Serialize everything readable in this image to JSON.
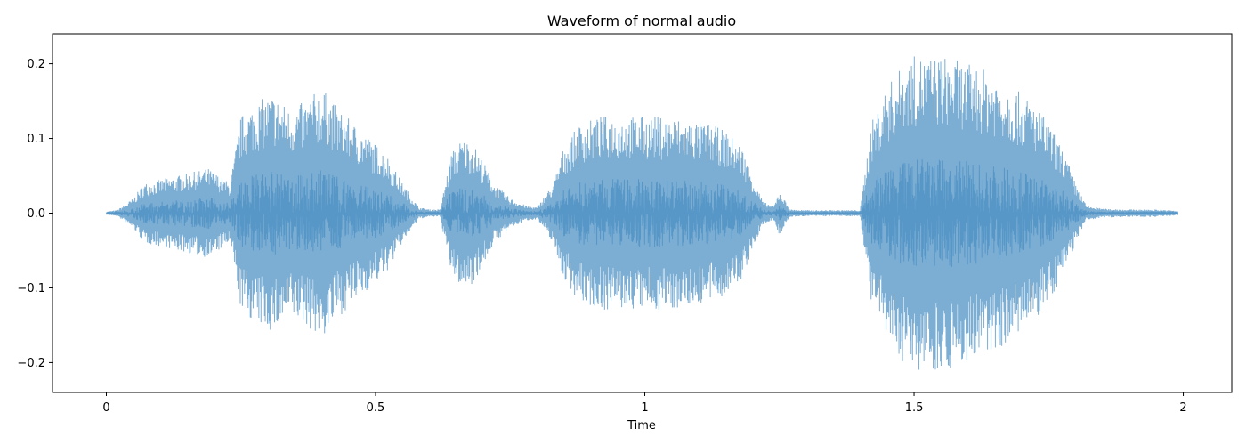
{
  "chart_data": {
    "type": "line",
    "title": "Waveform of normal audio",
    "xlabel": "Time",
    "ylabel": "",
    "xlim": [
      -0.1,
      2.09
    ],
    "ylim": [
      -0.24,
      0.24
    ],
    "xticks": [
      0,
      0.5,
      1,
      1.5,
      2
    ],
    "xtick_labels": [
      "0",
      "0.5",
      "1",
      "1.5",
      "2"
    ],
    "yticks": [
      -0.2,
      -0.1,
      0.0,
      0.1,
      0.2
    ],
    "ytick_labels": [
      "−0.2",
      "−0.1",
      "0.0",
      "0.1",
      "0.2"
    ],
    "grid": false,
    "line_color": "#4a8fc4",
    "series": [
      {
        "x": [
          0.0,
          0.02,
          0.05,
          0.07,
          0.1,
          0.13,
          0.16,
          0.19,
          0.21,
          0.23,
          0.25,
          0.28,
          0.31,
          0.34,
          0.37,
          0.4,
          0.43,
          0.46,
          0.49,
          0.52,
          0.55,
          0.58,
          0.6,
          0.62,
          0.64,
          0.66,
          0.68,
          0.7,
          0.72,
          0.75,
          0.78,
          0.8,
          0.83,
          0.85,
          0.88,
          0.92,
          0.96,
          1.0,
          1.04,
          1.08,
          1.12,
          1.15,
          1.18,
          1.2,
          1.22,
          1.24,
          1.25,
          1.27,
          1.3,
          1.35,
          1.4,
          1.42,
          1.45,
          1.48,
          1.5,
          1.53,
          1.56,
          1.6,
          1.64,
          1.68,
          1.72,
          1.75,
          1.78,
          1.8,
          1.82,
          1.85,
          1.9,
          1.95,
          1.99
        ],
        "amplitude": [
          0.002,
          0.004,
          0.02,
          0.04,
          0.045,
          0.05,
          0.055,
          0.06,
          0.05,
          0.04,
          0.13,
          0.15,
          0.16,
          0.14,
          0.15,
          0.17,
          0.14,
          0.12,
          0.1,
          0.08,
          0.04,
          0.008,
          0.005,
          0.005,
          0.08,
          0.1,
          0.095,
          0.07,
          0.04,
          0.02,
          0.01,
          0.008,
          0.04,
          0.09,
          0.12,
          0.13,
          0.13,
          0.13,
          0.13,
          0.125,
          0.12,
          0.11,
          0.09,
          0.05,
          0.015,
          0.01,
          0.03,
          0.005,
          0.004,
          0.004,
          0.004,
          0.12,
          0.17,
          0.2,
          0.21,
          0.21,
          0.21,
          0.2,
          0.19,
          0.17,
          0.15,
          0.12,
          0.08,
          0.04,
          0.01,
          0.006,
          0.005,
          0.005,
          0.003
        ]
      }
    ]
  }
}
